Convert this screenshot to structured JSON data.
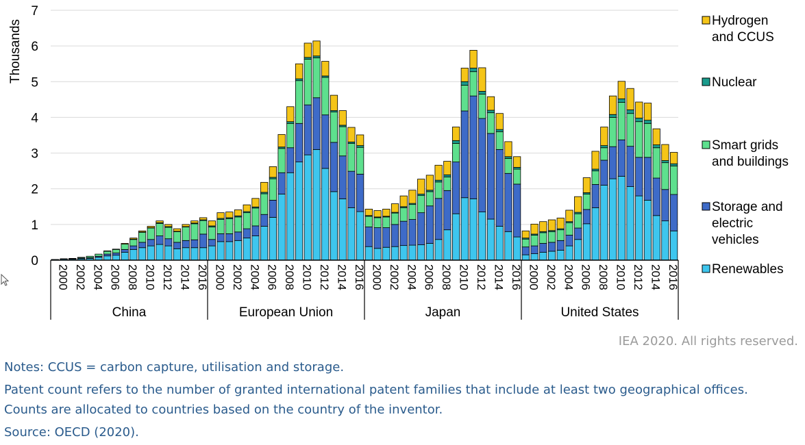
{
  "chart_data": {
    "type": "bar",
    "stacked": true,
    "ylabel": "Thousands",
    "ylim": [
      0,
      7
    ],
    "yticks": [
      0,
      1,
      2,
      3,
      4,
      5,
      6,
      7
    ],
    "grid": true,
    "legend_position": "right",
    "groups": [
      "China",
      "European Union",
      "Japan",
      "United States"
    ],
    "years": [
      2000,
      2001,
      2002,
      2003,
      2004,
      2005,
      2006,
      2007,
      2008,
      2009,
      2010,
      2011,
      2012,
      2013,
      2014,
      2015,
      2016,
      2017
    ],
    "x_tick_labels": [
      "2000",
      "2002",
      "2004",
      "2006",
      "2008",
      "2010",
      "2012",
      "2014",
      "2016"
    ],
    "series": [
      {
        "name": "Renewables",
        "color": "#3ec6ee",
        "values": {
          "China": [
            0.02,
            0.03,
            0.03,
            0.04,
            0.05,
            0.08,
            0.12,
            0.14,
            0.22,
            0.3,
            0.35,
            0.4,
            0.44,
            0.4,
            0.32,
            0.35,
            0.35,
            0.35
          ],
          "European Union": [
            0.4,
            0.52,
            0.52,
            0.55,
            0.62,
            0.68,
            0.95,
            1.2,
            1.85,
            2.45,
            2.75,
            2.95,
            3.1,
            2.57,
            1.92,
            1.72,
            1.47,
            1.36
          ],
          "Japan": [
            0.38,
            0.33,
            0.36,
            0.38,
            0.41,
            0.42,
            0.43,
            0.47,
            0.58,
            0.85,
            1.3,
            1.75,
            1.72,
            1.35,
            1.15,
            0.95,
            0.8,
            0.65
          ],
          "United States": [
            0.15,
            0.18,
            0.22,
            0.25,
            0.28,
            0.4,
            0.58,
            1.02,
            1.47,
            2.1,
            2.28,
            2.35,
            2.06,
            1.8,
            1.68,
            1.25,
            1.1,
            0.82
          ]
        }
      },
      {
        "name": "Storage and electric vehicles",
        "color": "#3e6bc8",
        "values": {
          "China": [
            0.0,
            0.01,
            0.01,
            0.02,
            0.02,
            0.03,
            0.05,
            0.06,
            0.08,
            0.1,
            0.15,
            0.18,
            0.24,
            0.2,
            0.18,
            0.2,
            0.22,
            0.38
          ],
          "European Union": [
            0.18,
            0.22,
            0.22,
            0.24,
            0.26,
            0.28,
            0.33,
            0.48,
            0.6,
            0.7,
            1.08,
            1.4,
            1.45,
            1.5,
            1.38,
            1.2,
            1.02,
            1.05
          ],
          "Japan": [
            0.55,
            0.58,
            0.55,
            0.62,
            0.68,
            0.72,
            0.9,
            1.05,
            1.15,
            1.1,
            1.45,
            2.43,
            2.88,
            2.62,
            2.4,
            2.15,
            1.63,
            1.48
          ],
          "United States": [
            0.22,
            0.22,
            0.25,
            0.25,
            0.27,
            0.3,
            0.32,
            0.4,
            0.65,
            0.7,
            0.9,
            1.02,
            1.13,
            1.08,
            1.2,
            1.05,
            0.88,
            1.02
          ]
        }
      },
      {
        "name": "Smart grids and buildings",
        "color": "#5ee08e",
        "values": {
          "China": [
            0.0,
            0.0,
            0.01,
            0.02,
            0.04,
            0.06,
            0.08,
            0.1,
            0.15,
            0.18,
            0.28,
            0.32,
            0.35,
            0.32,
            0.3,
            0.38,
            0.45,
            0.38
          ],
          "European Union": [
            0.35,
            0.4,
            0.42,
            0.42,
            0.45,
            0.5,
            0.58,
            0.6,
            0.68,
            0.68,
            1.2,
            1.28,
            1.12,
            1.05,
            0.85,
            0.82,
            0.78,
            0.75
          ],
          "Japan": [
            0.3,
            0.28,
            0.3,
            0.32,
            0.38,
            0.42,
            0.48,
            0.4,
            0.46,
            0.38,
            0.52,
            0.72,
            0.68,
            0.68,
            0.58,
            0.5,
            0.42,
            0.42
          ],
          "United States": [
            0.22,
            0.3,
            0.3,
            0.3,
            0.3,
            0.35,
            0.4,
            0.43,
            0.38,
            0.35,
            0.82,
            1.05,
            0.92,
            1.0,
            0.95,
            0.85,
            0.75,
            0.8
          ]
        }
      },
      {
        "name": "Nuclear",
        "color": "#1a9b8c",
        "values": {
          "China": [
            0.0,
            0.0,
            0.0,
            0.0,
            0.0,
            0.0,
            0.0,
            0.0,
            0.0,
            0.01,
            0.01,
            0.01,
            0.02,
            0.02,
            0.01,
            0.01,
            0.02,
            0.02
          ],
          "European Union": [
            0.03,
            0.03,
            0.03,
            0.03,
            0.03,
            0.03,
            0.04,
            0.04,
            0.04,
            0.05,
            0.05,
            0.05,
            0.05,
            0.04,
            0.04,
            0.04,
            0.04,
            0.05
          ],
          "Japan": [
            0.02,
            0.02,
            0.02,
            0.02,
            0.03,
            0.03,
            0.04,
            0.04,
            0.05,
            0.06,
            0.08,
            0.1,
            0.1,
            0.08,
            0.07,
            0.06,
            0.05,
            0.05
          ],
          "United States": [
            0.03,
            0.03,
            0.03,
            0.03,
            0.03,
            0.03,
            0.04,
            0.04,
            0.05,
            0.06,
            0.08,
            0.1,
            0.1,
            0.1,
            0.09,
            0.08,
            0.06,
            0.06
          ]
        }
      },
      {
        "name": "Hydrogen and CCUS",
        "color": "#f5c518",
        "values": {
          "China": [
            0.0,
            0.0,
            0.0,
            0.0,
            0.0,
            0.0,
            0.01,
            0.01,
            0.02,
            0.03,
            0.03,
            0.04,
            0.05,
            0.06,
            0.07,
            0.06,
            0.06,
            0.06
          ],
          "European Union": [
            0.14,
            0.16,
            0.16,
            0.17,
            0.19,
            0.24,
            0.28,
            0.3,
            0.35,
            0.42,
            0.42,
            0.4,
            0.42,
            0.41,
            0.43,
            0.41,
            0.41,
            0.3
          ],
          "Japan": [
            0.18,
            0.18,
            0.2,
            0.24,
            0.3,
            0.37,
            0.42,
            0.42,
            0.42,
            0.38,
            0.38,
            0.38,
            0.5,
            0.66,
            0.38,
            0.45,
            0.42,
            0.3
          ],
          "United States": [
            0.2,
            0.28,
            0.28,
            0.3,
            0.3,
            0.32,
            0.44,
            0.42,
            0.5,
            0.52,
            0.52,
            0.49,
            0.6,
            0.45,
            0.48,
            0.45,
            0.45,
            0.32
          ]
        }
      }
    ]
  },
  "legend_items": [
    {
      "lines": [
        "Hydrogen",
        "and CCUS"
      ],
      "color": "#f5c518"
    },
    {
      "lines": [
        "Nuclear"
      ],
      "color": "#1a9b8c"
    },
    {
      "lines": [
        "Smart grids",
        "and buildings"
      ],
      "color": "#5ee08e"
    },
    {
      "lines": [
        "Storage and",
        "electric",
        "vehicles"
      ],
      "color": "#3e6bc8"
    },
    {
      "lines": [
        "Renewables"
      ],
      "color": "#3ec6ee"
    }
  ],
  "copyright": "IEA 2020. All rights reserved.",
  "notes": {
    "line1": "Notes: CCUS = carbon capture, utilisation and storage.",
    "line2": "Patent count refers to the number of granted international patent families that include at least two geographical offices. Counts are allocated to countries based on the country of the inventor.",
    "source": "Source: OECD (2020)."
  }
}
